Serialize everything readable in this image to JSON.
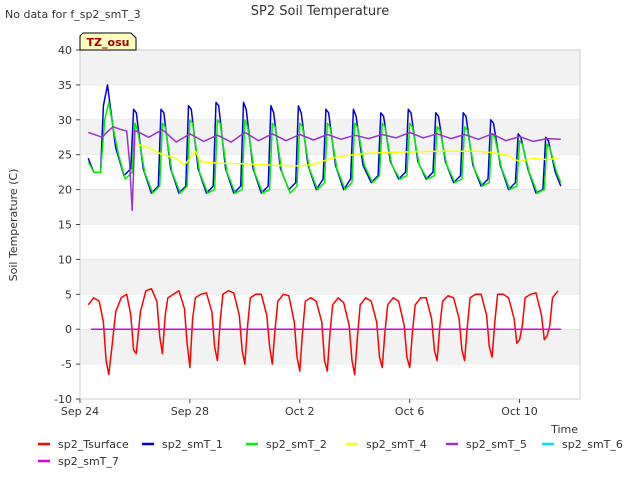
{
  "chart_data": {
    "type": "line",
    "title": "SP2 Soil Temperature",
    "corner_note": "No data for f_sp2_smT_3",
    "badge": "TZ_osu",
    "xlabel": "Time",
    "ylabel": "Soil Temperature (C)",
    "ylim": [
      -10,
      40
    ],
    "yticks": [
      -10,
      -5,
      0,
      5,
      10,
      15,
      20,
      25,
      30,
      35,
      40
    ],
    "xlim_days": [
      0,
      18.2
    ],
    "xticks": [
      {
        "label": "Sep 24",
        "day": 0
      },
      {
        "label": "Sep 28",
        "day": 4
      },
      {
        "label": "Oct 2",
        "day": 8
      },
      {
        "label": "Oct 6",
        "day": 12
      },
      {
        "label": "Oct 10",
        "day": 16
      }
    ],
    "grid": "horizontal bands",
    "legend_position": "bottom",
    "series": [
      {
        "name": "sp2_Tsurface",
        "color": "#ff0000",
        "x": [
          0.3,
          0.5,
          0.7,
          0.85,
          0.95,
          1.05,
          1.15,
          1.3,
          1.5,
          1.7,
          1.85,
          1.95,
          2.05,
          2.2,
          2.4,
          2.6,
          2.8,
          2.9,
          3.0,
          3.1,
          3.2,
          3.4,
          3.6,
          3.8,
          3.9,
          4.0,
          4.1,
          4.2,
          4.4,
          4.6,
          4.8,
          4.9,
          5.0,
          5.1,
          5.2,
          5.4,
          5.6,
          5.8,
          5.9,
          6.0,
          6.1,
          6.2,
          6.4,
          6.6,
          6.8,
          6.9,
          7.0,
          7.1,
          7.2,
          7.4,
          7.6,
          7.8,
          7.9,
          8.0,
          8.1,
          8.2,
          8.4,
          8.6,
          8.8,
          8.9,
          9.0,
          9.1,
          9.2,
          9.4,
          9.6,
          9.8,
          9.9,
          10.0,
          10.1,
          10.2,
          10.4,
          10.6,
          10.8,
          10.9,
          11.0,
          11.1,
          11.2,
          11.4,
          11.6,
          11.8,
          11.9,
          12.0,
          12.1,
          12.2,
          12.4,
          12.6,
          12.8,
          12.9,
          13.0,
          13.1,
          13.2,
          13.4,
          13.6,
          13.8,
          13.9,
          14.0,
          14.1,
          14.2,
          14.4,
          14.6,
          14.8,
          14.9,
          15.0,
          15.1,
          15.2,
          15.4,
          15.6,
          15.8,
          15.9,
          16.0,
          16.1,
          16.2,
          16.4,
          16.6,
          16.8,
          16.9,
          17.0,
          17.1,
          17.2,
          17.4
        ],
        "y": [
          3.5,
          4.5,
          4.0,
          1.0,
          -4.5,
          -6.5,
          -3.0,
          2.5,
          4.5,
          5.0,
          2.0,
          -3.0,
          -3.5,
          2.5,
          5.5,
          5.8,
          4.0,
          -1.0,
          -3.5,
          2.0,
          4.5,
          5.0,
          5.5,
          3.0,
          -2.0,
          -5.5,
          1.5,
          4.5,
          5.0,
          5.2,
          2.5,
          -2.5,
          -4.5,
          1.0,
          5.0,
          5.5,
          5.2,
          2.0,
          -3.0,
          -5.0,
          0.5,
          4.5,
          5.0,
          5.0,
          2.0,
          -2.5,
          -5.0,
          0.0,
          4.0,
          5.0,
          4.8,
          1.0,
          -4.0,
          -6.0,
          -0.5,
          4.0,
          4.5,
          4.0,
          1.0,
          -4.5,
          -6.0,
          -0.5,
          3.5,
          4.5,
          3.8,
          0.5,
          -4.5,
          -6.5,
          -1.0,
          3.5,
          4.5,
          4.0,
          1.0,
          -4.0,
          -5.5,
          -0.5,
          3.5,
          4.5,
          4.0,
          0.5,
          -4.0,
          -5.5,
          -0.5,
          3.5,
          4.5,
          4.5,
          1.5,
          -3.0,
          -4.5,
          0.5,
          4.0,
          4.8,
          4.5,
          1.5,
          -3.0,
          -4.5,
          0.5,
          4.5,
          5.0,
          5.0,
          2.0,
          -2.5,
          -4.0,
          1.0,
          5.0,
          5.0,
          4.5,
          1.5,
          -2.0,
          -1.5,
          0.5,
          4.5,
          5.0,
          5.2,
          2.0,
          -1.5,
          -1.0,
          0.5,
          4.5,
          5.5
        ]
      },
      {
        "name": "sp2_smT_1",
        "color": "#0000dd",
        "x": [
          0.3,
          0.5,
          0.75,
          0.85,
          1.0,
          1.1,
          1.3,
          1.6,
          1.85,
          1.95,
          2.05,
          2.3,
          2.6,
          2.85,
          2.95,
          3.05,
          3.3,
          3.6,
          3.85,
          3.95,
          4.05,
          4.3,
          4.6,
          4.85,
          4.95,
          5.05,
          5.3,
          5.6,
          5.85,
          5.95,
          6.05,
          6.3,
          6.6,
          6.85,
          6.95,
          7.05,
          7.3,
          7.6,
          7.85,
          7.95,
          8.05,
          8.3,
          8.6,
          8.85,
          8.95,
          9.05,
          9.3,
          9.6,
          9.85,
          9.95,
          10.05,
          10.3,
          10.6,
          10.85,
          10.95,
          11.05,
          11.3,
          11.6,
          11.85,
          11.95,
          12.05,
          12.3,
          12.6,
          12.85,
          12.95,
          13.05,
          13.3,
          13.6,
          13.85,
          13.95,
          14.05,
          14.3,
          14.6,
          14.85,
          14.95,
          15.05,
          15.3,
          15.6,
          15.85,
          15.95,
          16.05,
          16.3,
          16.6,
          16.85,
          16.95,
          17.05,
          17.3,
          17.5
        ],
        "y": [
          24.5,
          22.5,
          22.5,
          32.0,
          35.0,
          32.0,
          26.0,
          22.0,
          23.0,
          31.5,
          31.0,
          23.0,
          19.5,
          20.5,
          31.5,
          31.0,
          23.0,
          19.5,
          20.5,
          32.0,
          31.5,
          23.0,
          19.5,
          20.5,
          32.5,
          32.0,
          23.0,
          19.5,
          20.5,
          32.5,
          31.5,
          23.0,
          19.5,
          20.5,
          32.0,
          31.0,
          23.0,
          20.0,
          21.0,
          32.0,
          31.0,
          23.5,
          20.0,
          21.5,
          31.5,
          31.0,
          23.5,
          20.0,
          21.5,
          31.5,
          30.5,
          23.5,
          21.0,
          22.0,
          31.0,
          30.5,
          24.0,
          21.5,
          22.5,
          31.5,
          31.0,
          24.0,
          21.5,
          22.5,
          31.0,
          30.5,
          24.0,
          21.0,
          22.0,
          31.0,
          30.5,
          23.5,
          20.5,
          21.5,
          30.0,
          29.5,
          23.5,
          20.0,
          21.0,
          28.0,
          27.5,
          23.0,
          19.5,
          20.0,
          27.5,
          27.0,
          22.5,
          20.5
        ]
      },
      {
        "name": "sp2_smT_2",
        "color": "#00ee00",
        "x": [
          0.3,
          0.5,
          0.75,
          0.9,
          1.05,
          1.2,
          1.4,
          1.65,
          1.9,
          2.0,
          2.1,
          2.35,
          2.65,
          2.9,
          3.0,
          3.1,
          3.35,
          3.65,
          3.9,
          4.0,
          4.1,
          4.35,
          4.65,
          4.9,
          5.0,
          5.1,
          5.35,
          5.65,
          5.9,
          6.0,
          6.1,
          6.35,
          6.65,
          6.9,
          7.0,
          7.1,
          7.35,
          7.65,
          7.9,
          8.0,
          8.1,
          8.35,
          8.65,
          8.9,
          9.0,
          9.1,
          9.35,
          9.65,
          9.9,
          10.0,
          10.1,
          10.35,
          10.65,
          10.9,
          11.0,
          11.1,
          11.35,
          11.65,
          11.9,
          12.0,
          12.1,
          12.35,
          12.65,
          12.9,
          13.0,
          13.1,
          13.35,
          13.65,
          13.9,
          14.0,
          14.1,
          14.35,
          14.65,
          14.9,
          15.0,
          15.1,
          15.35,
          15.65,
          15.9,
          16.0,
          16.1,
          16.35,
          16.65,
          16.9,
          17.0,
          17.1,
          17.35,
          17.5
        ],
        "y": [
          24.0,
          22.5,
          22.5,
          30.0,
          32.5,
          29.0,
          25.0,
          21.5,
          22.5,
          29.5,
          28.5,
          22.5,
          19.5,
          20.5,
          29.5,
          29.0,
          22.5,
          19.5,
          20.5,
          30.0,
          29.5,
          22.5,
          19.5,
          20.0,
          30.0,
          29.5,
          22.5,
          19.5,
          20.0,
          30.0,
          29.0,
          22.5,
          19.5,
          20.0,
          29.5,
          29.0,
          22.5,
          19.5,
          20.5,
          29.5,
          29.0,
          23.0,
          20.0,
          21.0,
          29.5,
          29.0,
          23.0,
          20.0,
          21.0,
          29.5,
          29.0,
          23.5,
          21.0,
          22.0,
          29.5,
          29.0,
          23.5,
          21.5,
          22.0,
          29.5,
          29.0,
          23.5,
          21.5,
          22.0,
          29.0,
          28.5,
          23.5,
          21.0,
          21.5,
          29.0,
          28.5,
          23.0,
          20.5,
          21.0,
          28.0,
          27.5,
          23.0,
          20.0,
          20.5,
          27.0,
          26.5,
          22.5,
          19.5,
          20.0,
          26.5,
          26.0,
          22.5,
          21.0
        ]
      },
      {
        "name": "sp2_smT_4",
        "color": "#ffff00",
        "x": [
          2.1,
          2.5,
          3.0,
          3.5,
          3.8,
          4.0,
          4.2,
          4.4,
          5.0,
          6.0,
          7.0,
          8.0,
          8.5,
          9.0,
          9.5,
          10.0,
          10.5,
          11.0,
          12.0,
          13.0,
          14.0,
          14.5,
          15.0,
          15.5,
          16.0,
          16.5,
          17.0,
          17.4
        ],
        "y": [
          26.5,
          26.0,
          25.0,
          24.5,
          23.5,
          24.5,
          25.5,
          24.0,
          23.8,
          23.7,
          23.5,
          23.4,
          23.6,
          24.3,
          24.8,
          25.0,
          25.2,
          25.3,
          25.4,
          25.5,
          25.5,
          25.5,
          25.3,
          25.0,
          24.0,
          24.5,
          24.3,
          24.5
        ]
      },
      {
        "name": "sp2_smT_5",
        "color": "#9933cc",
        "x": [
          0.3,
          0.6,
          0.8,
          1.0,
          1.2,
          1.5,
          1.7,
          1.8,
          1.9,
          2.0,
          2.5,
          3.0,
          3.5,
          4.0,
          4.5,
          5.0,
          5.5,
          6.0,
          6.5,
          7.0,
          7.5,
          8.0,
          8.5,
          9.0,
          9.5,
          10.0,
          10.5,
          11.0,
          11.5,
          12.0,
          12.5,
          13.0,
          13.5,
          14.0,
          14.5,
          15.0,
          15.5,
          16.0,
          16.5,
          17.0,
          17.5
        ],
        "y": [
          28.2,
          27.8,
          27.5,
          28.3,
          29.0,
          28.6,
          28.4,
          24.0,
          17.0,
          28.5,
          27.5,
          28.6,
          26.8,
          28.0,
          26.9,
          27.8,
          26.8,
          28.2,
          27.0,
          28.0,
          27.0,
          27.9,
          27.1,
          27.9,
          27.2,
          27.8,
          27.3,
          27.9,
          27.4,
          28.2,
          27.4,
          28.0,
          27.3,
          27.9,
          27.2,
          28.0,
          27.0,
          27.6,
          26.9,
          27.3,
          27.2
        ]
      },
      {
        "name": "sp2_smT_6",
        "color": "#00e5ee",
        "x": [
          0.4,
          17.5
        ],
        "y": [
          0.0,
          0.0
        ]
      },
      {
        "name": "sp2_smT_7",
        "color": "#dd00dd",
        "x": [
          0.4,
          17.5
        ],
        "y": [
          0.0,
          0.0
        ]
      }
    ]
  }
}
